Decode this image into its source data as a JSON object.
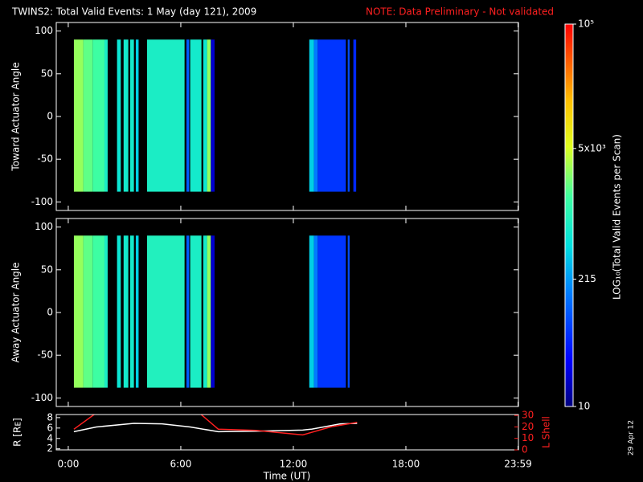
{
  "chart_data": {
    "type": "spectrogram",
    "title": "TWINS2: Total Valid Events:  1 May (day 121), 2009",
    "note": "NOTE: Data Preliminary - Not validated",
    "xlabel": "Time (UT)",
    "xlim": [
      -0.64,
      24
    ],
    "xticks": [
      {
        "value": 0,
        "label": "0:00"
      },
      {
        "value": 6,
        "label": "6:00"
      },
      {
        "value": 12,
        "label": "12:00"
      },
      {
        "value": 18,
        "label": "18:00"
      },
      {
        "value": 23.98,
        "label": "23:59"
      }
    ],
    "panels": [
      {
        "ylabel": "Toward Actuator Angle",
        "ylim": [
          -110,
          110
        ],
        "yticks": [
          -100,
          -50,
          0,
          50,
          100
        ],
        "angle_range": [
          -88,
          90
        ],
        "strips": [
          {
            "start": 0.3,
            "end": 0.8,
            "value": 3000
          },
          {
            "start": 0.8,
            "end": 1.3,
            "value": 2000
          },
          {
            "start": 1.3,
            "end": 1.93,
            "value": 1500
          },
          {
            "start": 1.93,
            "end": 2.1,
            "value": 800
          },
          {
            "start": 2.6,
            "end": 2.8,
            "value": 600
          },
          {
            "start": 2.95,
            "end": 3.2,
            "value": 700
          },
          {
            "start": 3.3,
            "end": 3.5,
            "value": 700
          },
          {
            "start": 3.6,
            "end": 3.75,
            "value": 400
          },
          {
            "start": 4.2,
            "end": 6.2,
            "value": 800
          },
          {
            "start": 6.3,
            "end": 6.45,
            "value": 100
          },
          {
            "start": 6.5,
            "end": 7.1,
            "value": 700
          },
          {
            "start": 7.2,
            "end": 7.4,
            "value": 600
          },
          {
            "start": 7.4,
            "end": 7.6,
            "value": 3000
          },
          {
            "start": 7.6,
            "end": 7.8,
            "value": 20
          },
          {
            "start": 12.85,
            "end": 13.1,
            "value": 400
          },
          {
            "start": 13.1,
            "end": 13.3,
            "value": 150
          },
          {
            "start": 13.3,
            "end": 14.8,
            "value": 60
          },
          {
            "start": 14.9,
            "end": 15.0,
            "value": 80
          },
          {
            "start": 15.2,
            "end": 15.35,
            "value": 50
          }
        ]
      },
      {
        "ylabel": "Away Actuator Angle",
        "ylim": [
          -110,
          110
        ],
        "yticks": [
          -100,
          -50,
          0,
          50,
          100
        ],
        "angle_range": [
          -88,
          90
        ],
        "strips": [
          {
            "start": 0.3,
            "end": 0.8,
            "value": 3000
          },
          {
            "start": 0.8,
            "end": 1.3,
            "value": 2000
          },
          {
            "start": 1.3,
            "end": 1.93,
            "value": 1500
          },
          {
            "start": 1.93,
            "end": 2.1,
            "value": 800
          },
          {
            "start": 2.6,
            "end": 2.8,
            "value": 600
          },
          {
            "start": 2.95,
            "end": 3.2,
            "value": 700
          },
          {
            "start": 3.3,
            "end": 3.5,
            "value": 700
          },
          {
            "start": 3.6,
            "end": 3.75,
            "value": 400
          },
          {
            "start": 4.2,
            "end": 6.2,
            "value": 900
          },
          {
            "start": 6.3,
            "end": 6.45,
            "value": 100
          },
          {
            "start": 6.5,
            "end": 7.1,
            "value": 800
          },
          {
            "start": 7.2,
            "end": 7.4,
            "value": 700
          },
          {
            "start": 7.4,
            "end": 7.6,
            "value": 3000
          },
          {
            "start": 7.6,
            "end": 7.8,
            "value": 20
          },
          {
            "start": 12.85,
            "end": 13.1,
            "value": 400
          },
          {
            "start": 13.1,
            "end": 13.3,
            "value": 150
          },
          {
            "start": 13.3,
            "end": 14.8,
            "value": 60
          },
          {
            "start": 14.9,
            "end": 15.0,
            "value": 80
          }
        ]
      }
    ],
    "colorbar": {
      "label": "LOG₁₀(Total Valid  Events per Scan)",
      "lim": [
        10,
        100000
      ],
      "log": true,
      "ticks": [
        10,
        215,
        {
          "value": 5000,
          "label": "5x10³"
        },
        {
          "value": 100000,
          "label": "10⁵"
        }
      ]
    },
    "orbit": {
      "ylabel": "R [Rᴇ]",
      "y2label": "L Shell",
      "ylim": [
        1.8,
        8.6
      ],
      "yticks": [
        2,
        4,
        6,
        8
      ],
      "y2lim": [
        0,
        30.8
      ],
      "y2ticks": [
        0,
        10,
        20,
        30
      ],
      "series": [
        {
          "color": "#ffffff",
          "axis": "y",
          "x": [
            0.3,
            1.5,
            3.5,
            5,
            6.5,
            8,
            10,
            12.5,
            13,
            14.5,
            15.4
          ],
          "values": [
            5.3,
            6.2,
            6.9,
            6.8,
            6.2,
            5.3,
            5.4,
            5.6,
            5.8,
            6.8,
            6.9
          ]
        },
        {
          "color": "#ff2020",
          "axis": "y2",
          "x": [
            0.3,
            1.4,
            4,
            7,
            8,
            10,
            12.5,
            14,
            15.4
          ],
          "values": [
            18,
            31,
            null,
            32,
            18,
            17,
            13,
            20,
            24
          ]
        }
      ]
    },
    "date": "29 Apr 12"
  }
}
